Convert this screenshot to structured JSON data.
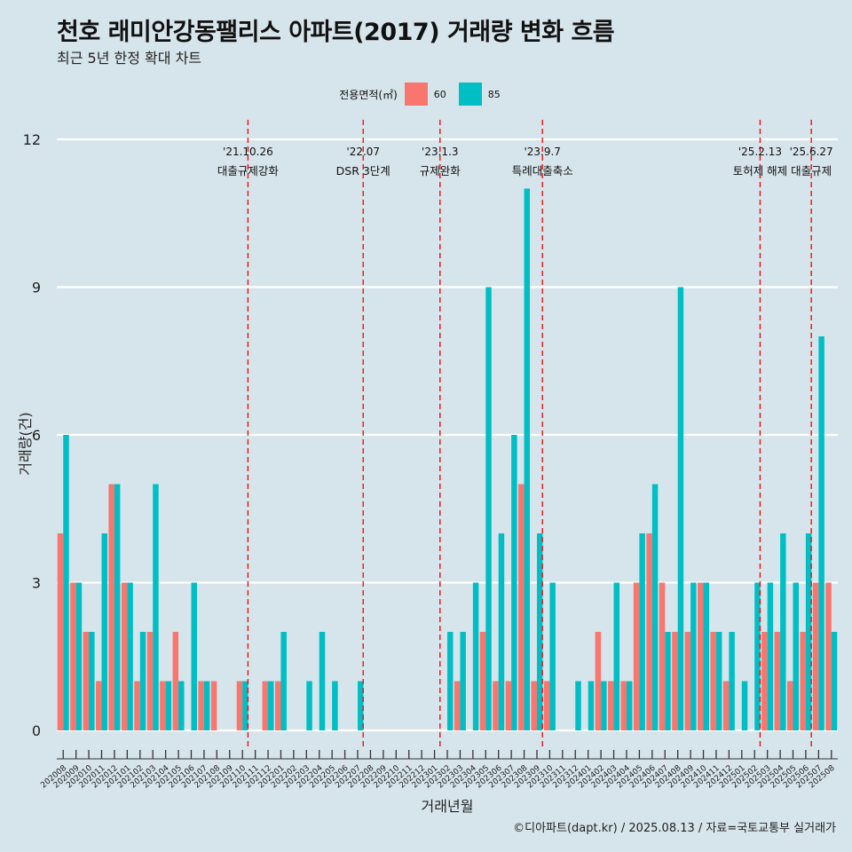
{
  "chart_data": {
    "type": "bar",
    "title": "천호 래미안강동팰리스 아파트(2017) 거래량 변화 흐름",
    "subtitle": "최근 5년 한정 확대 차트",
    "xlabel": "거래년월",
    "ylabel": "거래량(건)",
    "ylim": [
      -0.75,
      12.4
    ],
    "yticks": [
      0,
      3,
      6,
      9,
      12
    ],
    "legend": {
      "title": "전용면적(㎡)",
      "position": "top"
    },
    "colors": {
      "60": "#f8766d",
      "85": "#00bfc4"
    },
    "categories": [
      "202008",
      "202009",
      "202010",
      "202011",
      "202012",
      "202101",
      "202102",
      "202103",
      "202104",
      "202105",
      "202106",
      "202107",
      "202108",
      "202109",
      "202110",
      "202111",
      "202112",
      "202201",
      "202202",
      "202203",
      "202204",
      "202205",
      "202206",
      "202207",
      "202208",
      "202209",
      "202210",
      "202211",
      "202212",
      "202301",
      "202302",
      "202303",
      "202304",
      "202305",
      "202306",
      "202307",
      "202308",
      "202309",
      "202310",
      "202311",
      "202312",
      "202401",
      "202402",
      "202403",
      "202404",
      "202405",
      "202406",
      "202407",
      "202408",
      "202409",
      "202410",
      "202411",
      "202412",
      "202501",
      "202502",
      "202503",
      "202504",
      "202505",
      "202506",
      "202507",
      "202508"
    ],
    "series": [
      {
        "name": "60",
        "values": [
          4,
          3,
          2,
          1,
          5,
          3,
          1,
          2,
          1,
          2,
          0,
          1,
          1,
          0,
          1,
          0,
          1,
          1,
          0,
          0,
          0,
          0,
          0,
          0,
          0,
          0,
          0,
          0,
          0,
          0,
          0,
          1,
          0,
          2,
          1,
          1,
          5,
          1,
          1,
          0,
          0,
          0,
          2,
          1,
          1,
          3,
          4,
          3,
          2,
          2,
          3,
          2,
          1,
          0,
          0,
          2,
          2,
          1,
          2,
          3,
          3
        ]
      },
      {
        "name": "85",
        "values": [
          6,
          3,
          2,
          4,
          5,
          3,
          2,
          5,
          1,
          1,
          3,
          1,
          0,
          0,
          1,
          0,
          1,
          2,
          0,
          1,
          2,
          1,
          0,
          1,
          0,
          0,
          0,
          0,
          0,
          0,
          2,
          2,
          3,
          9,
          4,
          6,
          11,
          4,
          3,
          0,
          1,
          1,
          1,
          3,
          1,
          4,
          5,
          2,
          9,
          3,
          3,
          2,
          2,
          1,
          3,
          3,
          4,
          3,
          4,
          8,
          2
        ]
      }
    ],
    "events": [
      {
        "date": "'21.10.26",
        "label": "대출규제강화",
        "after": "202110"
      },
      {
        "date": "'22.07",
        "label": "DSR 3단계",
        "after": "202207"
      },
      {
        "date": "'23.1.3",
        "label": "규제완화",
        "after": "202301"
      },
      {
        "date": "'23.9.7",
        "label": "특례대출축소",
        "after": "202309"
      },
      {
        "date": "'25.2.13",
        "label": "토허제 해제",
        "after": "202502"
      },
      {
        "date": "'25.6.27",
        "label": "대출규제",
        "after": "202506"
      }
    ],
    "caption": "©디아파트(dapt.kr) / 2025.08.13 / 자료=국토교통부 실거래가"
  }
}
